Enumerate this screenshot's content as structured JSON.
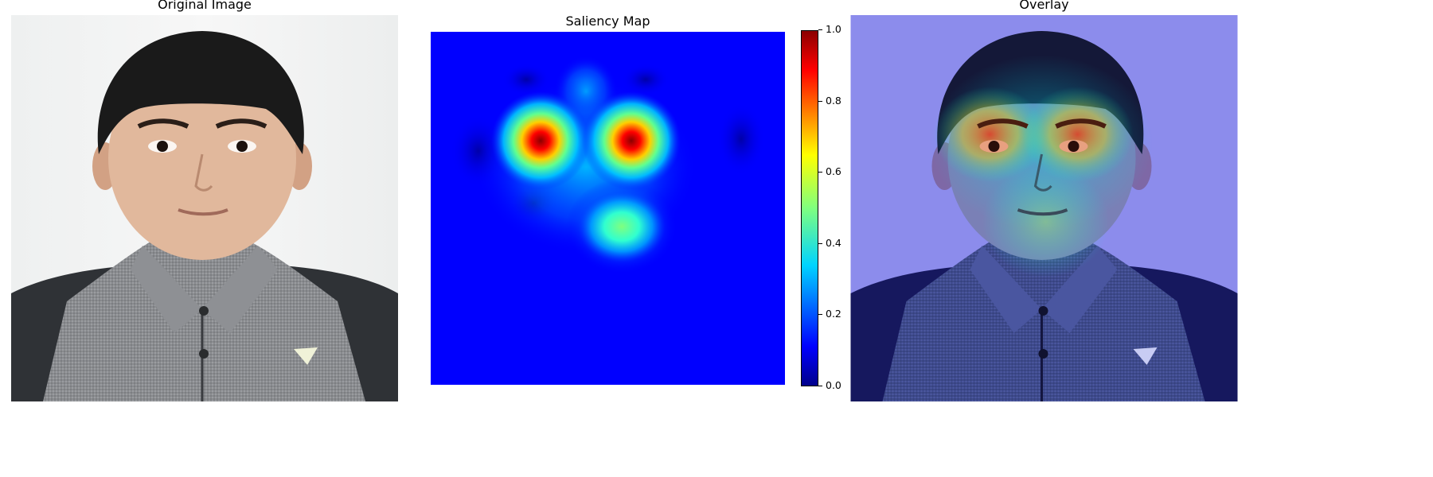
{
  "panels": {
    "original": {
      "title": "Original Image"
    },
    "saliency": {
      "title": "Saliency Map"
    },
    "overlay": {
      "title": "Overlay"
    }
  },
  "colorbar": {
    "colormap": "jet",
    "ticks": [
      "0.0",
      "0.2",
      "0.4",
      "0.6",
      "0.8",
      "1.0"
    ]
  },
  "chart_data": {
    "type": "heatmap",
    "title": "Saliency Map",
    "colormap": "jet",
    "value_range": [
      0.0,
      1.0
    ],
    "colorbar_ticks": [
      0.0,
      0.2,
      0.4,
      0.6,
      0.8,
      1.0
    ],
    "hotspots": [
      {
        "feature": "left eye",
        "peak": 1.0
      },
      {
        "feature": "right eye",
        "peak": 1.0
      },
      {
        "feature": "chin",
        "peak": 0.45
      }
    ]
  },
  "colors": {
    "hot": "#8b0000",
    "cold": "#00008b",
    "background": "#0000ff"
  }
}
